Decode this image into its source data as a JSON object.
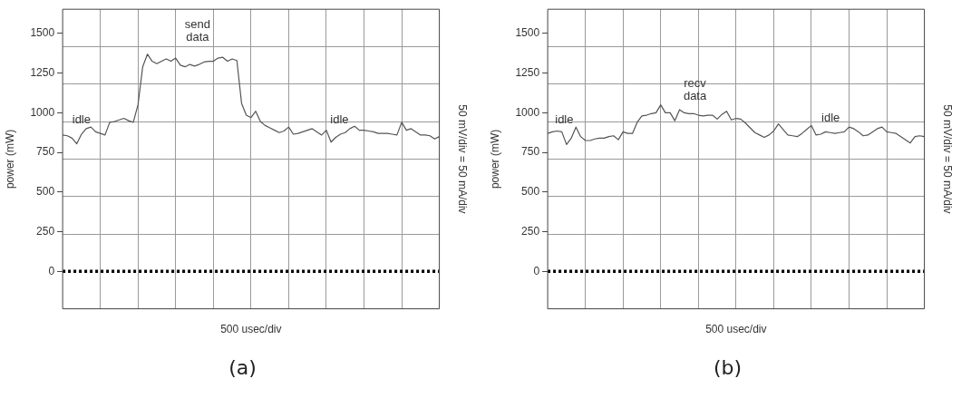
{
  "chart_data": [
    {
      "type": "line",
      "xlabel": "500 usec/div",
      "ylabel": "power (mW)",
      "y2label": "50 mV/div = 50 mA/div",
      "categories": [
        null,
        null,
        null,
        null,
        null,
        null,
        null,
        null,
        null,
        null,
        null,
        null,
        null,
        null,
        null,
        null,
        null,
        null,
        null,
        null,
        null,
        null,
        null,
        null,
        null,
        null,
        null,
        null,
        null,
        null,
        null,
        null,
        null,
        null,
        null,
        null,
        null,
        null,
        null,
        null,
        null,
        null,
        null,
        null,
        null,
        null,
        null,
        null,
        null,
        null,
        null,
        null,
        null,
        null,
        null,
        null,
        null,
        null,
        null,
        null,
        null,
        null,
        null,
        null,
        null,
        null,
        null,
        null,
        null,
        null,
        null,
        null,
        null,
        null,
        null,
        null,
        null,
        null,
        null,
        null,
        null
      ],
      "ylim": [
        -236,
        1653
      ],
      "yticks": [
        0,
        {
          "value": 236,
          "label": null
        },
        250,
        {
          "value": 472,
          "label": null
        },
        500,
        {
          "value": 709,
          "label": null
        },
        750,
        {
          "value": 945,
          "label": null
        },
        1000,
        {
          "value": 1181,
          "label": null
        },
        1250,
        {
          "value": 1417,
          "label": null
        },
        1500
      ],
      "tick_labels": "y",
      "grid": true,
      "legend": false,
      "marker": "none",
      "annotations": [
        "send data",
        "idle",
        "idle",
        "(a)"
      ],
      "series": [
        {
          "color": "#555555",
          "line_style": "solid",
          "values": [
            860,
            855,
            840,
            805,
            865,
            900,
            910,
            880,
            870,
            860,
            940,
            945,
            955,
            965,
            950,
            940,
            1050,
            1290,
            1370,
            1325,
            1310,
            1325,
            1340,
            1325,
            1345,
            1300,
            1290,
            1305,
            1295,
            1305,
            1320,
            1325,
            1325,
            1345,
            1350,
            1325,
            1340,
            1330,
            1060,
            985,
            970,
            1010,
            945,
            920,
            905,
            890,
            875,
            885,
            910,
            865,
            870,
            880,
            890,
            900,
            880,
            860,
            890,
            815,
            845,
            865,
            875,
            900,
            915,
            890,
            890,
            885,
            880,
            870,
            870,
            870,
            865,
            860,
            940,
            890,
            900,
            880,
            860,
            860,
            855,
            835,
            850
          ]
        },
        {
          "color": "#000000",
          "line_style": "dotted",
          "values": [
            0,
            0,
            0,
            0,
            0,
            0,
            0,
            0,
            0,
            0,
            0,
            0,
            0,
            0,
            0,
            0,
            0,
            0,
            0,
            0,
            0,
            0,
            0,
            0,
            0,
            0,
            0,
            0,
            0,
            0,
            0,
            0,
            0,
            0,
            0,
            0,
            0,
            0,
            0,
            0,
            0,
            0,
            0,
            0,
            0,
            0,
            0,
            0,
            0,
            0,
            0,
            0,
            0,
            0,
            0,
            0,
            0,
            0,
            0,
            0,
            0,
            0,
            0,
            0,
            0,
            0,
            0,
            0,
            0,
            0,
            0,
            0,
            0,
            0,
            0,
            0,
            0,
            0,
            0,
            0,
            0
          ]
        }
      ]
    },
    {
      "type": "line",
      "xlabel": "500 usec/div",
      "ylabel": "power (mW)",
      "y2label": "50 mV/div = 50 mA/div",
      "categories": [
        null,
        null,
        null,
        null,
        null,
        null,
        null,
        null,
        null,
        null,
        null,
        null,
        null,
        null,
        null,
        null,
        null,
        null,
        null,
        null,
        null,
        null,
        null,
        null,
        null,
        null,
        null,
        null,
        null,
        null,
        null,
        null,
        null,
        null,
        null,
        null,
        null,
        null,
        null,
        null,
        null,
        null,
        null,
        null,
        null,
        null,
        null,
        null,
        null,
        null,
        null,
        null,
        null,
        null,
        null,
        null,
        null,
        null,
        null,
        null,
        null,
        null,
        null,
        null,
        null,
        null,
        null,
        null,
        null,
        null,
        null,
        null,
        null,
        null,
        null,
        null,
        null,
        null,
        null,
        null,
        null
      ],
      "ylim": [
        -236,
        1653
      ],
      "yticks": [
        0,
        {
          "value": 236,
          "label": null
        },
        250,
        {
          "value": 472,
          "label": null
        },
        500,
        {
          "value": 709,
          "label": null
        },
        750,
        {
          "value": 945,
          "label": null
        },
        1000,
        {
          "value": 1181,
          "label": null
        },
        1250,
        {
          "value": 1417,
          "label": null
        },
        1500
      ],
      "tick_labels": "y",
      "grid": true,
      "legend": false,
      "marker": "none",
      "annotations": [
        "recv data",
        "idle",
        "idle",
        "(b)"
      ],
      "series": [
        {
          "color": "#555555",
          "line_style": "solid",
          "values": [
            870,
            880,
            885,
            880,
            800,
            840,
            910,
            850,
            825,
            825,
            835,
            840,
            840,
            850,
            855,
            830,
            880,
            870,
            870,
            940,
            980,
            985,
            995,
            1000,
            1050,
            1000,
            1000,
            950,
            1020,
            1000,
            995,
            995,
            985,
            980,
            985,
            985,
            960,
            990,
            1010,
            955,
            965,
            960,
            935,
            905,
            875,
            860,
            845,
            860,
            885,
            930,
            895,
            860,
            855,
            850,
            870,
            895,
            920,
            860,
            865,
            880,
            875,
            870,
            875,
            880,
            910,
            900,
            880,
            855,
            860,
            880,
            900,
            910,
            880,
            875,
            870,
            850,
            830,
            810,
            850,
            855,
            850
          ]
        },
        {
          "color": "#000000",
          "line_style": "dotted",
          "values": [
            0,
            0,
            0,
            0,
            0,
            0,
            0,
            0,
            0,
            0,
            0,
            0,
            0,
            0,
            0,
            0,
            0,
            0,
            0,
            0,
            0,
            0,
            0,
            0,
            0,
            0,
            0,
            0,
            0,
            0,
            0,
            0,
            0,
            0,
            0,
            0,
            0,
            0,
            0,
            0,
            0,
            0,
            0,
            0,
            0,
            0,
            0,
            0,
            0,
            0,
            0,
            0,
            0,
            0,
            0,
            0,
            0,
            0,
            0,
            0,
            0,
            0,
            0,
            0,
            0,
            0,
            0,
            0,
            0,
            0,
            0,
            0,
            0,
            0,
            0,
            0,
            0,
            0,
            0,
            0,
            0
          ]
        }
      ]
    }
  ]
}
